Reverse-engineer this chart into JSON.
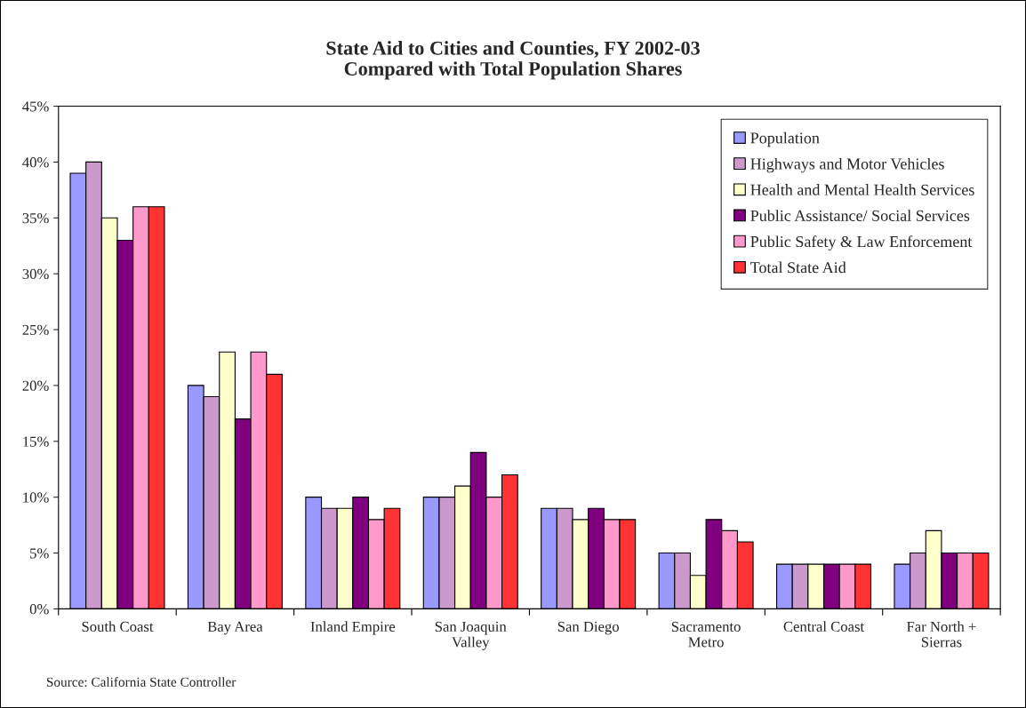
{
  "chart_data": {
    "type": "bar",
    "title": "State Aid to Cities and Counties, FY 2002-03\nCompared with Total Population Shares",
    "categories": [
      "South Coast",
      "Bay Area",
      "Inland Empire",
      "San Joaquin\nValley",
      "San Diego",
      "Sacramento\nMetro",
      "Central Coast",
      "Far North +\nSierras"
    ],
    "series": [
      {
        "name": "Population",
        "color": "#9999ff",
        "values": [
          39,
          20,
          10,
          10,
          9,
          5,
          4,
          4
        ]
      },
      {
        "name": "Highways and Motor Vehicles",
        "color": "#cc99cc",
        "values": [
          40,
          19,
          9,
          10,
          9,
          5,
          4,
          5
        ]
      },
      {
        "name": "Health and Mental Health Services",
        "color": "#ffffcc",
        "values": [
          35,
          23,
          9,
          11,
          8,
          3,
          4,
          7
        ]
      },
      {
        "name": "Public Assistance/ Social Services",
        "color": "#800080",
        "values": [
          33,
          17,
          10,
          14,
          9,
          8,
          4,
          5
        ]
      },
      {
        "name": "Public Safety & Law Enforcement",
        "color": "#ff99cc",
        "values": [
          36,
          23,
          8,
          10,
          8,
          7,
          4,
          5
        ]
      },
      {
        "name": "Total State Aid",
        "color": "#ff3333",
        "values": [
          36,
          21,
          9,
          12,
          8,
          6,
          4,
          5
        ]
      }
    ],
    "ylim": [
      0,
      45
    ],
    "yticks": [
      {
        "value": 0,
        "label": "0%"
      },
      {
        "value": 5,
        "label": "5%"
      },
      {
        "value": 10,
        "label": "10%"
      },
      {
        "value": 15,
        "label": "15%"
      },
      {
        "value": 20,
        "label": "20%"
      },
      {
        "value": 25,
        "label": "25%"
      },
      {
        "value": 30,
        "label": "30%"
      },
      {
        "value": 35,
        "label": "35%"
      },
      {
        "value": 40,
        "label": "40%"
      },
      {
        "value": 45,
        "label": "45%"
      }
    ],
    "annotations": [
      "Source: California State Controller"
    ],
    "legend": "top right",
    "grid": false
  }
}
